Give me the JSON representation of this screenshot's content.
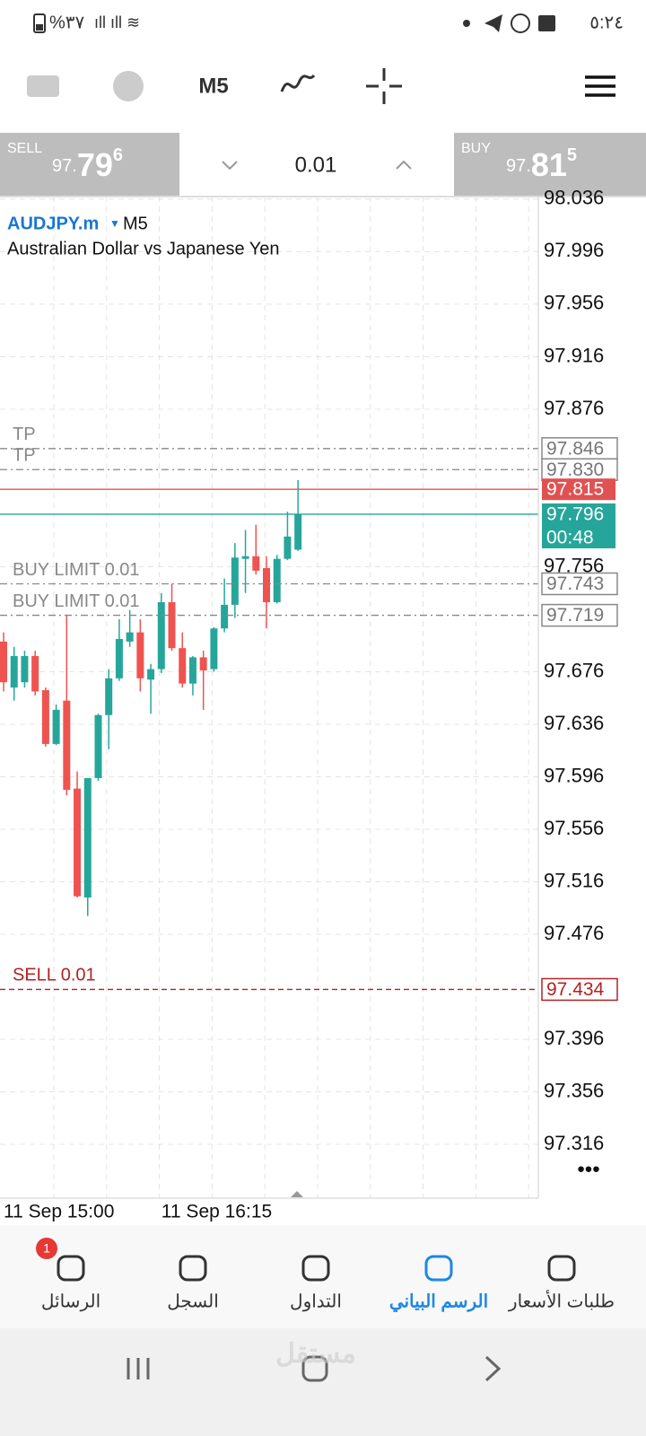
{
  "status_bar": {
    "time": "٥:٢٤",
    "battery": "%٣٧"
  },
  "toolbar": {
    "timeframe": "M5"
  },
  "trade_panel": {
    "sell_label": "SELL",
    "sell_prefix": "97.",
    "sell_big": "79",
    "sell_sup": "6",
    "lot": "0.01",
    "buy_label": "BUY",
    "buy_prefix": "97.",
    "buy_big": "81",
    "buy_sup": "5"
  },
  "chart_data": {
    "type": "candlestick",
    "symbol": "AUDJPY.m",
    "timeframe": "M5",
    "description": "Australian Dollar vs Japanese Yen",
    "up_color": "#26a69a",
    "down_color": "#ef5350",
    "candles": [
      [
        97.699,
        97.706,
        97.661,
        97.668
      ],
      [
        97.664,
        97.695,
        97.654,
        97.688
      ],
      [
        97.668,
        97.692,
        97.664,
        97.688
      ],
      [
        97.688,
        97.692,
        97.658,
        97.661
      ],
      [
        97.662,
        97.664,
        97.619,
        97.621
      ],
      [
        97.621,
        97.651,
        97.62,
        97.647
      ],
      [
        97.654,
        97.719,
        97.582,
        97.586
      ],
      [
        97.587,
        97.6,
        97.504,
        97.505
      ],
      [
        97.504,
        97.595,
        97.49,
        97.595
      ],
      [
        97.595,
        97.644,
        97.593,
        97.643
      ],
      [
        97.643,
        97.678,
        97.617,
        97.671
      ],
      [
        97.671,
        97.716,
        97.669,
        97.701
      ],
      [
        97.699,
        97.723,
        97.695,
        97.706
      ],
      [
        97.706,
        97.716,
        97.661,
        97.671
      ],
      [
        97.67,
        97.682,
        97.644,
        97.678
      ],
      [
        97.678,
        97.736,
        97.675,
        97.729
      ],
      [
        97.729,
        97.743,
        97.692,
        97.694
      ],
      [
        97.694,
        97.706,
        97.664,
        97.667
      ],
      [
        97.667,
        97.688,
        97.658,
        97.687
      ],
      [
        97.687,
        97.692,
        97.647,
        97.677
      ],
      [
        97.678,
        97.71,
        97.676,
        97.709
      ],
      [
        97.709,
        97.747,
        97.706,
        97.727
      ],
      [
        97.727,
        97.774,
        97.717,
        97.763
      ],
      [
        97.762,
        97.784,
        97.736,
        97.764
      ],
      [
        97.764,
        97.788,
        97.75,
        97.753
      ],
      [
        97.755,
        97.764,
        97.709,
        97.729
      ],
      [
        97.729,
        97.765,
        97.728,
        97.762
      ],
      [
        97.762,
        97.798,
        97.761,
        97.779
      ],
      [
        97.769,
        97.822,
        97.768,
        97.796
      ]
    ],
    "ylim": [
      97.275,
      98.038
    ],
    "yticks": [
      98.036,
      97.996,
      97.956,
      97.916,
      97.876,
      97.756,
      97.676,
      97.636,
      97.596,
      97.556,
      97.516,
      97.476,
      97.396,
      97.356,
      97.316
    ],
    "grid": true,
    "x_tick_labels": [
      "11 Sep 15:00",
      "11 Sep 16:15"
    ],
    "levels": [
      {
        "name": "TP",
        "value": 97.846,
        "value_label": "97.846",
        "color": "#888888",
        "style": "dashdot",
        "box": "outline"
      },
      {
        "name": "TP",
        "value": 97.83,
        "value_label": "97.830",
        "color": "#888888",
        "style": "dashdot",
        "box": "outline"
      },
      {
        "value": 97.815,
        "value_label": "97.815",
        "color": "#e05252",
        "style": "solid",
        "box": "fill"
      },
      {
        "value": 97.796,
        "value_label": "97.796",
        "timer": "00:48",
        "color": "#26a69a",
        "style": "solid",
        "box": "fill"
      },
      {
        "name": "BUY LIMIT 0.01",
        "value": 97.743,
        "value_label": "97.743",
        "color": "#888888",
        "style": "dashdot",
        "box": "outline"
      },
      {
        "name": "BUY LIMIT 0.01",
        "value": 97.719,
        "value_label": "97.719",
        "color": "#888888",
        "style": "dashdot",
        "box": "outline"
      },
      {
        "name": "SELL 0.01",
        "value": 97.434,
        "value_label": "97.434",
        "color": "#b22222",
        "style": "dashed",
        "box": "outline"
      }
    ]
  },
  "bottom_nav": {
    "badge": "1",
    "items": [
      "الرسائل",
      "السجل",
      "التداول",
      "الرسم البياني",
      "طلبات الأسعار"
    ],
    "active": 3
  },
  "watermark": "مستقل"
}
